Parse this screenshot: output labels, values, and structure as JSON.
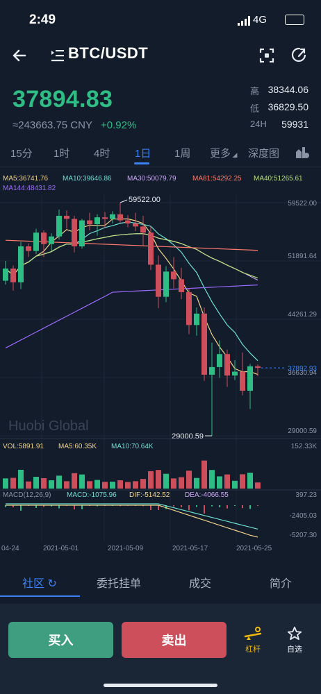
{
  "status": {
    "time": "2:49",
    "network": "4G"
  },
  "header": {
    "pair": "BTC/USDT"
  },
  "ticker": {
    "price": "37894.83",
    "cny": "≈243663.75 CNY",
    "change": "+0.92%",
    "high_label": "高",
    "high": "38344.06",
    "low_label": "低",
    "low": "36829.50",
    "vol_label": "24H",
    "vol": "59931"
  },
  "intervals": [
    "15分",
    "1时",
    "4时",
    "1日",
    "1周",
    "更多",
    "深度图"
  ],
  "ma": {
    "ma5": "MA5:36741.76",
    "ma10": "MA10:39646.86",
    "ma30": "MA30:50079.79",
    "ma81": "MA81:54292.25",
    "ma40": "MA40:51265.61",
    "ma144": "MA144:48431.82"
  },
  "chart_data": {
    "type": "candlestick",
    "y_axis_labels": [
      "59522.00",
      "51891.64",
      "44261.29",
      "36630.94",
      "29000.59"
    ],
    "ylim": [
      29000.59,
      59522.0
    ],
    "high_marker": "59522.00",
    "low_marker": "29000.59",
    "current_price_label": "37892.93",
    "watermark": "Huobi Global",
    "x_labels": [
      "04-24",
      "2021-05-01",
      "2021-05-09",
      "2021-05-17",
      "2021-05-25"
    ],
    "candles": [
      [
        49300,
        51900,
        48800,
        50900
      ],
      [
        50900,
        51300,
        48000,
        49100
      ],
      [
        49100,
        54400,
        48200,
        53800
      ],
      [
        53800,
        54200,
        52400,
        53200
      ],
      [
        53200,
        56100,
        52800,
        55600
      ],
      [
        55600,
        55900,
        52400,
        54100
      ],
      [
        54100,
        55500,
        53200,
        55100
      ],
      [
        55100,
        58600,
        54700,
        57800
      ],
      [
        57800,
        58500,
        56100,
        57400
      ],
      [
        57400,
        57800,
        53000,
        53800
      ],
      [
        53800,
        57400,
        53500,
        57200
      ],
      [
        57200,
        58200,
        55900,
        56700
      ],
      [
        56700,
        58000,
        55200,
        57600
      ],
      [
        57600,
        58300,
        56200,
        57400
      ],
      [
        57400,
        58400,
        56800,
        58000
      ],
      [
        58000,
        59522,
        56900,
        57200
      ],
      [
        57200,
        57900,
        56300,
        56800
      ],
      [
        56800,
        58200,
        55800,
        56400
      ],
      [
        56400,
        57800,
        53900,
        55600
      ],
      [
        55600,
        56400,
        50700,
        51400
      ],
      [
        51400,
        52600,
        45700,
        47200
      ],
      [
        47200,
        51200,
        46500,
        50500
      ],
      [
        50500,
        52400,
        48300,
        49500
      ],
      [
        49500,
        51000,
        46900,
        47800
      ],
      [
        47800,
        48300,
        42300,
        43500
      ],
      [
        43500,
        45800,
        42100,
        45000
      ],
      [
        45000,
        45800,
        36200,
        37000
      ],
      [
        37000,
        41200,
        29000.59,
        38000
      ],
      [
        38000,
        41500,
        36600,
        39700
      ],
      [
        39700,
        40300,
        35400,
        36900
      ],
      [
        36900,
        38900,
        36300,
        37400
      ],
      [
        37400,
        39900,
        34300,
        34900
      ],
      [
        34900,
        38400,
        32500,
        38100
      ],
      [
        38100,
        38344,
        36829,
        37893
      ]
    ],
    "volume": {
      "labels": [
        "VOL:5891.91",
        "MA5:60.35K",
        "MA10:70.64K"
      ],
      "max_label": "152.33K"
    },
    "macd": {
      "labels": [
        "MACD(12,26,9)",
        "MACD:-1075.96",
        "DIF:-5142.52",
        "DEA:-4066.55"
      ],
      "axis": [
        "397.23",
        "-2405.03",
        "-5207.30"
      ]
    }
  },
  "bottom_tabs": [
    "社区",
    "委托挂单",
    "成交",
    "简介"
  ],
  "actions": {
    "buy": "买入",
    "sell": "卖出",
    "leverage": "杠杆",
    "favorite": "自选"
  },
  "colors": {
    "up": "#2ebd85",
    "down": "#cc4f5b",
    "accent": "#3b82f6",
    "bg": "#131c2b"
  }
}
